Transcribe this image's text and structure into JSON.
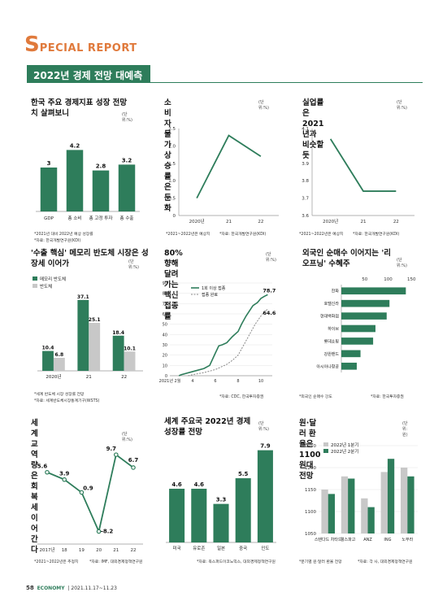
{
  "header": {
    "sr_big": "S",
    "sr_rest": "PECIAL REPORT",
    "section_title": "2022년 경제 전망 대예측"
  },
  "footer": {
    "page": "58",
    "mag": "ECONOMY",
    "date": "2021.11.17~11.23"
  },
  "chart_data": [
    {
      "type": "bar",
      "title": "한국 주요 경제지표 성장 전망치 살펴보니",
      "unit": "(단위:%)",
      "categories": [
        "GDP",
        "총 소비",
        "총 고정 투자",
        "총 수출"
      ],
      "values": [
        3,
        4.2,
        2.8,
        3.2
      ],
      "value_labels": [
        "3",
        "4.2",
        "2.8",
        "3.2"
      ],
      "ylim": [
        0,
        5
      ],
      "notes": [
        "*2021년 대비 2022년 예상 성장률",
        "*자료: 한국개발연구원(KDI)"
      ]
    },
    {
      "type": "line",
      "title": "소비자물가 상승률은 둔화",
      "unit": "(단위:%)",
      "x": [
        "2020년",
        "21",
        "22"
      ],
      "values": [
        0.5,
        2.3,
        1.7
      ],
      "ylim": [
        0,
        2.5
      ],
      "yticks": [
        "0",
        "0.5",
        "1.0",
        "1.5",
        "2.0",
        "2.5"
      ],
      "notes": [
        "*2021~2022년은 예상치",
        "*자료: 한국개발연구원(KDI)"
      ]
    },
    {
      "type": "line",
      "title": "실업률은 2021년과 비슷할 듯",
      "unit": "(단위:%)",
      "x": [
        "2020년",
        "21",
        "22"
      ],
      "values": [
        4.04,
        3.74,
        3.74
      ],
      "ylim": [
        3.6,
        4.1
      ],
      "yticks": [
        "3.6",
        "3.7",
        "3.8",
        "3.9",
        "4",
        "4.1"
      ],
      "notes": [
        "*2021~2022년은 예상치",
        "*자료: 한국개발연구원(KDI)"
      ]
    },
    {
      "type": "bar",
      "title": "'수출 핵심' 메모리 반도체 시장은 성장세 이어가",
      "unit": "(단위:%)",
      "categories": [
        "2020년",
        "21",
        "22"
      ],
      "series": [
        {
          "name": "메모리 반도체",
          "values": [
            10.4,
            37.1,
            18.4
          ],
          "labels": [
            "10.4",
            "37.1",
            "18.4"
          ]
        },
        {
          "name": "반도체",
          "values": [
            6.8,
            25.1,
            10.1
          ],
          "labels": [
            "6.8",
            "25.1",
            "10.1"
          ]
        }
      ],
      "ylim": [
        0,
        40
      ],
      "notes": [
        "*세계 반도체 시장 성장률 전망",
        "*자료: 세계반도체시장통계기구(WSTS)"
      ]
    },
    {
      "type": "line",
      "title": "80% 향해 달려가는 백신 접종률",
      "unit": "(단위:%)",
      "x_ticks": [
        "2021년 2월",
        "4",
        "6",
        "8",
        "10"
      ],
      "yticks": [
        "0",
        "10",
        "20",
        "30",
        "40",
        "50",
        "60",
        "70",
        "80",
        "90"
      ],
      "ylim": [
        0,
        90
      ],
      "xlim": [
        2,
        11
      ],
      "series": [
        {
          "name": "1회 이상 접종",
          "x": [
            2.8,
            3,
            4,
            5,
            5.5,
            6,
            6.3,
            6.6,
            7,
            7.5,
            8,
            8.3,
            8.7,
            9,
            9.3,
            9.7,
            10,
            10.3,
            10.6
          ],
          "y": [
            0,
            1,
            4,
            7,
            10,
            22,
            29,
            30,
            32,
            38,
            43,
            50,
            58,
            63,
            68,
            71,
            75,
            77,
            78.7
          ],
          "end_label": "78.7"
        },
        {
          "name": "접종 완료",
          "x": [
            3.6,
            4,
            5,
            6,
            7,
            7.5,
            8,
            8.5,
            9,
            9.5,
            10,
            10.3,
            10.6
          ],
          "y": [
            0,
            1,
            3,
            6,
            11,
            15,
            20,
            30,
            40,
            50,
            58,
            62,
            64.6
          ],
          "end_label": "64.6"
        }
      ],
      "notes": [
        "*자료: CDC, 한국투자증권"
      ]
    },
    {
      "type": "bar",
      "orientation": "horizontal",
      "title": "외국인 순매수 이어지는 '리오프닝' 수혜주",
      "unit": "(단위:%)",
      "xticks": [
        "50",
        "100",
        "150"
      ],
      "xlim": [
        0,
        160
      ],
      "categories": [
        "한화",
        "호텔신라",
        "현대백화점",
        "하이브",
        "롯데쇼핑",
        "강원랜드",
        "아시아나항공"
      ],
      "values": [
        138,
        103,
        97,
        73,
        68,
        41,
        33
      ],
      "notes": [
        "*외국인 순매수 강도",
        "*자료: 한국투자증권"
      ]
    },
    {
      "type": "line",
      "title": "세계 교역량은 회복세 이어간다",
      "unit": "(단위:%)",
      "x": [
        "2017년",
        "18",
        "19",
        "20",
        "21",
        "22"
      ],
      "values": [
        5.6,
        3.9,
        0.9,
        -8.2,
        9.7,
        6.7
      ],
      "value_labels": [
        "5.6",
        "3.9",
        "0.9",
        "-8.2",
        "9.7",
        "6.7"
      ],
      "ylim": [
        -10,
        12
      ],
      "notes": [
        "*2021~2022년은 추정치",
        "*자료: IMF, 대외경제정책연구원"
      ]
    },
    {
      "type": "bar",
      "title": "세계 주요국 2022년 경제성장률 전망",
      "unit": "(단위:%)",
      "categories": [
        "미국",
        "유로존",
        "일본",
        "중국",
        "인도"
      ],
      "values": [
        4.6,
        4.6,
        3.3,
        5.5,
        7.9
      ],
      "value_labels": [
        "4.6",
        "4.6",
        "3.3",
        "5.5",
        "7.9"
      ],
      "ylim": [
        0,
        8.5
      ],
      "notes": [
        "*자료: 옥스퍼드이코노믹스, 대외경제정책연구원"
      ]
    },
    {
      "type": "bar",
      "title": "원·달러 환율은 1100원대 전망",
      "unit": "(단위:원)",
      "categories": [
        "스탠다드 차타드",
        "웰스파고",
        "ANZ",
        "ING",
        "노무라"
      ],
      "series": [
        {
          "name": "2022년 1분기",
          "values": [
            1150,
            1180,
            1130,
            1190,
            1200
          ]
        },
        {
          "name": "2022년 2분기",
          "values": [
            1140,
            1175,
            1110,
            1220,
            1180
          ]
        }
      ],
      "ylim": [
        1050,
        1250
      ],
      "yticks": [
        "1050",
        "1100",
        "1150",
        "1200",
        "1250"
      ],
      "notes": [
        "*분기별 원·달러 환율 전망",
        "*자료: 각 사, 대외경제정책연구원"
      ]
    }
  ]
}
